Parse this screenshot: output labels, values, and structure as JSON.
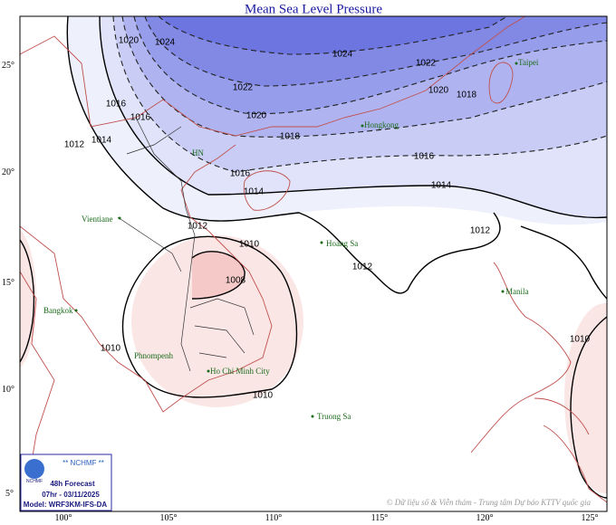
{
  "title": "Mean Sea Level Pressure",
  "lon_ticks": [
    "100°",
    "105°",
    "110°",
    "115°",
    "120°",
    "125°"
  ],
  "lat_ticks": [
    "25°",
    "20°",
    "15°",
    "10°",
    "5°"
  ],
  "contours": [
    "1024",
    "1024",
    "1022",
    "1022",
    "1020",
    "1020",
    "1020",
    "1018",
    "1018",
    "1016",
    "1016",
    "1016",
    "1016",
    "1014",
    "1014",
    "1014",
    "1012",
    "1012",
    "1012",
    "1012",
    "1010",
    "1010",
    "1010",
    "1010",
    "1008"
  ],
  "places": [
    "Taipei",
    "Hongkong",
    "HN",
    "Vientiane",
    "Hoang Sa",
    "Manila",
    "Bangkok",
    "Phnompenh",
    "Ho Chi Minh City",
    "Truong Sa"
  ],
  "info": {
    "org": "** NCHMF **",
    "logo": "NCHMF",
    "forecast": "48h Forecast",
    "time": "07hr - 03/11/2025",
    "model": "Model: WRF3KM-IFS-DA"
  },
  "credit": "© Dữ liệu số & Viễn thám - Trung tâm Dự báo KTTV quốc gia"
}
